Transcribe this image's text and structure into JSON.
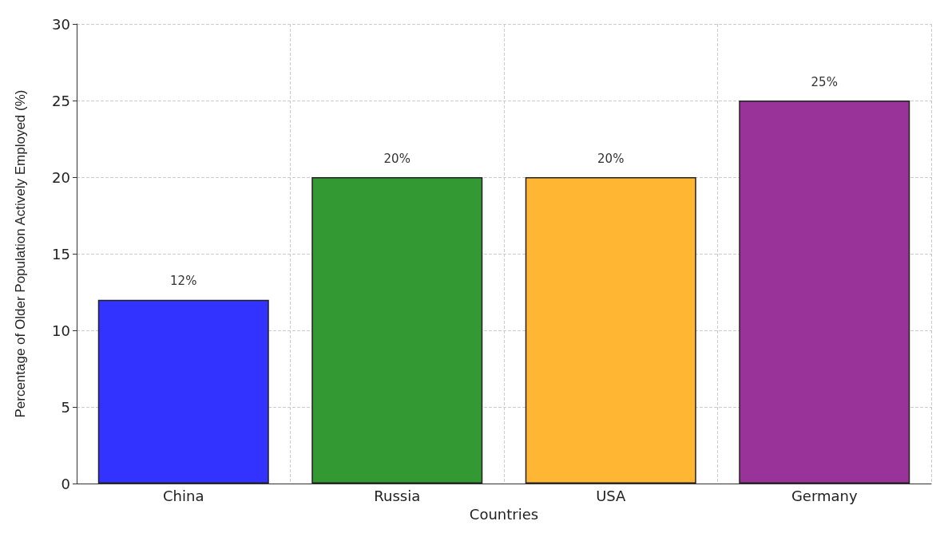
{
  "chart_data": {
    "type": "bar",
    "xlabel": "Countries",
    "ylabel": "Percentage of Older Population Actively Employed (%)",
    "categories": [
      "China",
      "Russia",
      "USA",
      "Germany"
    ],
    "values": [
      12,
      20,
      20,
      25
    ],
    "colors": [
      "#3333ff",
      "#339933",
      "#ffb733",
      "#993399"
    ],
    "value_labels": [
      "12%",
      "20%",
      "20%",
      "25%"
    ],
    "ylim": [
      0,
      30
    ],
    "yticks": [
      0,
      5,
      10,
      15,
      20,
      25,
      30
    ],
    "grid": true
  }
}
